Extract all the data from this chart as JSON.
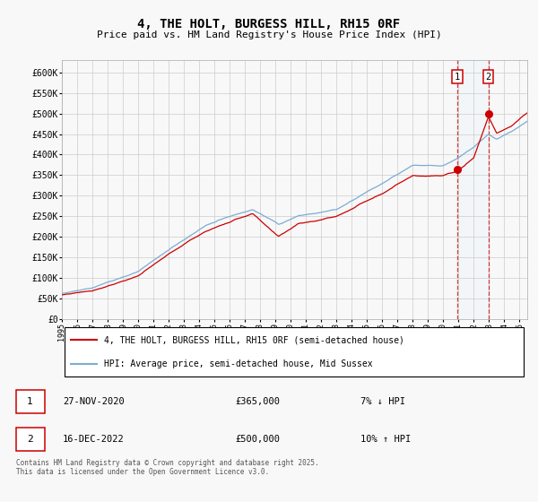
{
  "title": "4, THE HOLT, BURGESS HILL, RH15 0RF",
  "subtitle": "Price paid vs. HM Land Registry's House Price Index (HPI)",
  "legend_label_red": "4, THE HOLT, BURGESS HILL, RH15 0RF (semi-detached house)",
  "legend_label_blue": "HPI: Average price, semi-detached house, Mid Sussex",
  "annotation1_date": "27-NOV-2020",
  "annotation1_price": "£365,000",
  "annotation1_hpi": "7% ↓ HPI",
  "annotation2_date": "16-DEC-2022",
  "annotation2_price": "£500,000",
  "annotation2_hpi": "10% ↑ HPI",
  "footnote": "Contains HM Land Registry data © Crown copyright and database right 2025.\nThis data is licensed under the Open Government Licence v3.0.",
  "red_color": "#cc0000",
  "blue_color": "#7aadd4",
  "shade_color": "#ddeeff",
  "grid_color": "#cccccc",
  "background_color": "#f8f8f8",
  "ylim": [
    0,
    630000
  ],
  "yticks": [
    0,
    50000,
    100000,
    150000,
    200000,
    250000,
    300000,
    350000,
    400000,
    450000,
    500000,
    550000,
    600000
  ],
  "ytick_labels": [
    "£0",
    "£50K",
    "£100K",
    "£150K",
    "£200K",
    "£250K",
    "£300K",
    "£350K",
    "£400K",
    "£450K",
    "£500K",
    "£550K",
    "£600K"
  ],
  "sale1_year": 2020.917,
  "sale1_value_red": 365000,
  "sale2_year": 2022.958,
  "sale2_value_red": 500000
}
